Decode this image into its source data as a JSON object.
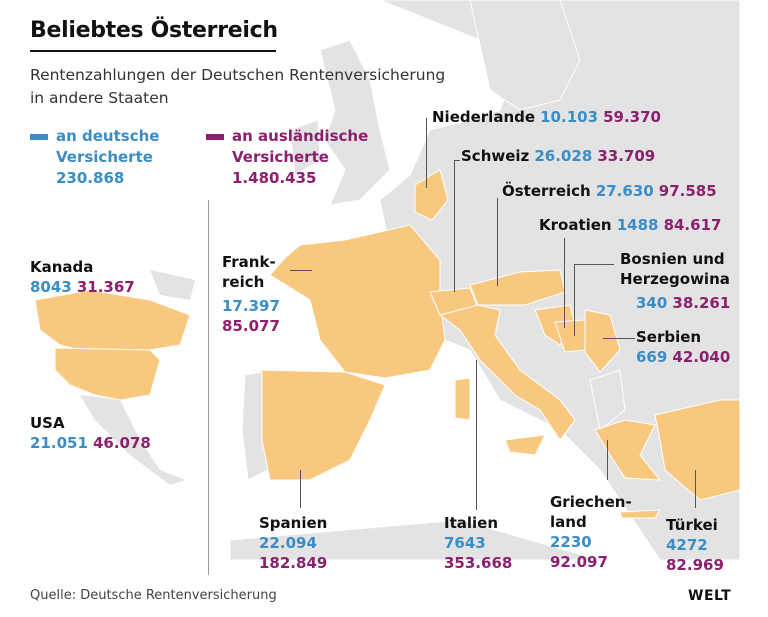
{
  "title": "Beliebtes Österreich",
  "subtitle_lines": [
    "Rentenzahlungen der Deutschen Rentenversicherung",
    "in andere Staaten"
  ],
  "colors": {
    "german_insured": "#3a8dc6",
    "foreign_insured": "#8c1f6e",
    "highlight_country": "#f8c87f",
    "other_land": "#e3e3e3"
  },
  "legend": {
    "german": {
      "line1": "an deutsche",
      "line2": "Versicherte",
      "total": "230.868"
    },
    "foreign": {
      "line1": "an ausländische",
      "line2": "Versicherte",
      "total": "1.480.435"
    }
  },
  "countries": {
    "niederlande": {
      "name": "Niederlande",
      "german": "10.103",
      "foreign": "59.370"
    },
    "schweiz": {
      "name": "Schweiz",
      "german": "26.028",
      "foreign": "33.709"
    },
    "oesterreich": {
      "name": "Österreich",
      "german": "27.630",
      "foreign": "97.585"
    },
    "kroatien": {
      "name": "Kroatien",
      "german": "1488",
      "foreign": "84.617"
    },
    "bosnien": {
      "name1": "Bosnien und",
      "name2": "Herzegowina",
      "german": "340",
      "foreign": "38.261"
    },
    "serbien": {
      "name": "Serbien",
      "german": "669",
      "foreign": "42.040"
    },
    "frankreich": {
      "name1": "Frank-",
      "name2": "reich",
      "german": "17.397",
      "foreign": "85.077"
    },
    "kanada": {
      "name": "Kanada",
      "german": "8043",
      "foreign": "31.367"
    },
    "usa": {
      "name": "USA",
      "german": "21.051",
      "foreign": "46.078"
    },
    "spanien": {
      "name": "Spanien",
      "german": "22.094",
      "foreign": "182.849"
    },
    "italien": {
      "name": "Italien",
      "german": "7643",
      "foreign": "353.668"
    },
    "griechenland": {
      "name1": "Griechen-",
      "name2": "land",
      "german": "2230",
      "foreign": "92.097"
    },
    "tuerkei": {
      "name": "Türkei",
      "german": "4272",
      "foreign": "82.969"
    }
  },
  "source": "Quelle: Deutsche Rentenversicherung",
  "logo": "WELT"
}
